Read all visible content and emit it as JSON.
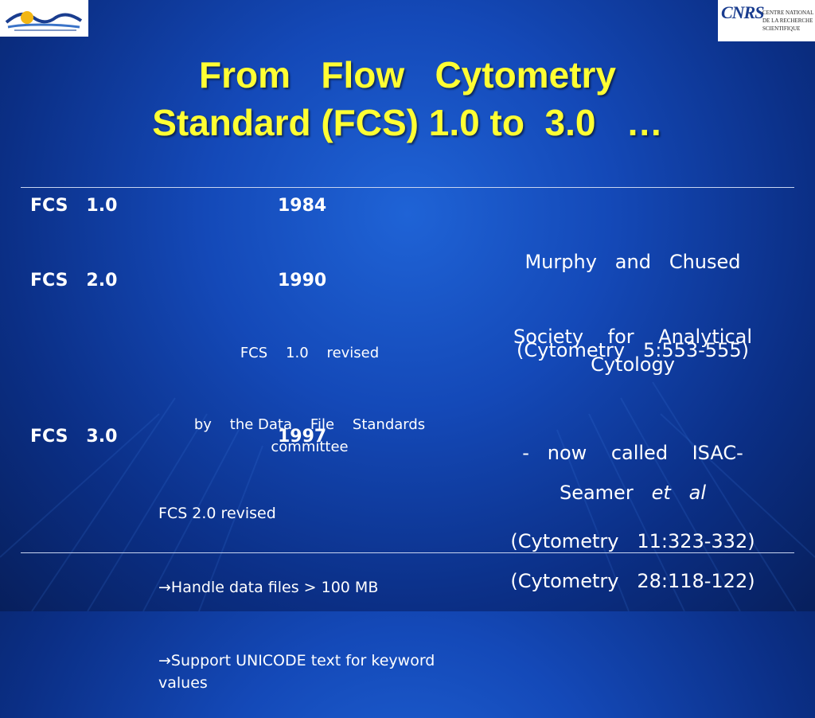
{
  "logos": {
    "left_name": "logo-left",
    "cnrs_mark": "CNRS",
    "cnrs_lines": [
      "CENTRE NATIONAL",
      "DE LA RECHERCHE",
      "SCIENTIFIQUE"
    ]
  },
  "title": {
    "line1": "From   Flow   Cytometry",
    "line2": "Standard (FCS) 1.0 to  3.0   …"
  },
  "rows": [
    {
      "version": "FCS   1.0",
      "year": "1984",
      "notes": [],
      "ref_lines": [
        "Murphy   and   Chused",
        "(Cytometry   5:553-555)"
      ]
    },
    {
      "version": "FCS   2.0",
      "year": "1990",
      "notes": [
        "FCS    1.0    revised",
        "by    the Data    File    Standards committee"
      ],
      "ref_lines": [
        "Society    for    Analytical Cytology",
        "-   now    called    ISAC-",
        "(Cytometry   11:323-332)"
      ]
    },
    {
      "version": "FCS   3.0",
      "year": "1997",
      "notes": [
        "FCS 2.0 revised",
        "→Handle data files > 100 MB",
        "→Support UNICODE text for keyword values"
      ],
      "ref_author": "Seamer   ",
      "ref_etal": "et   al",
      "ref_lines": [
        "(Cytometry   28:118-122)"
      ]
    }
  ],
  "colors": {
    "title": "#ffff33",
    "background": "#1449b8",
    "text": "#ffffff"
  }
}
